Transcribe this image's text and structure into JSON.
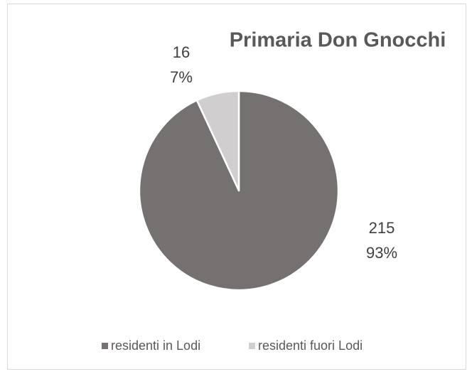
{
  "chart_data": {
    "type": "pie",
    "title": "Primaria Don Gnocchi",
    "categories": [
      "residenti in Lodi",
      "residenti fuori Lodi"
    ],
    "values": [
      215,
      16
    ],
    "percent_labels": [
      "93%",
      "7%"
    ],
    "colors": [
      "#767171",
      "#d0cece"
    ],
    "legend": "bottom"
  }
}
